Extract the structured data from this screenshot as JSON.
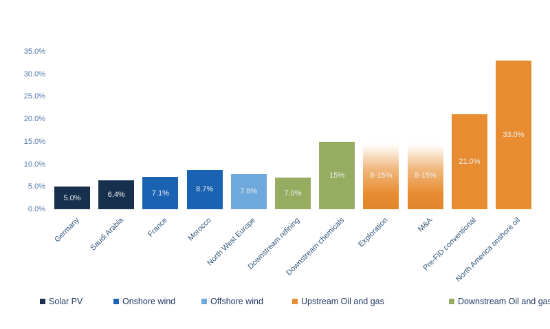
{
  "chart_data": {
    "type": "bar",
    "title": "",
    "xlabel": "",
    "ylabel": "",
    "grid": false,
    "y_axis": {
      "ylim": [
        0,
        35
      ],
      "tick_values": [
        0,
        5,
        10,
        15,
        20,
        25,
        30,
        35
      ],
      "tick_labels": [
        "0.0%",
        "5.0%",
        "10.0%",
        "15.0%",
        "20.0%",
        "25.0%",
        "30.0%",
        "35.0%"
      ]
    },
    "categories": [
      "Germany",
      "Saudi Arabia",
      "France",
      "Morocco",
      "North West Europe",
      "Downstream refining",
      "Downstream chemicals",
      "Exploration",
      "M&A",
      "Pre-FID conventional",
      "North America onshore oil"
    ],
    "bars": [
      {
        "category": "Germany",
        "value": 5.0,
        "label": "5.0%",
        "group": "Solar PV",
        "fill": "solid"
      },
      {
        "category": "Saudi Arabia",
        "value": 6.4,
        "label": "6.4%",
        "group": "Solar PV",
        "fill": "solid"
      },
      {
        "category": "France",
        "value": 7.1,
        "label": "7.1%",
        "group": "Onshore wind",
        "fill": "solid"
      },
      {
        "category": "Morocco",
        "value": 8.7,
        "label": "8.7%",
        "group": "Onshore wind",
        "fill": "solid"
      },
      {
        "category": "North West Europe",
        "value": 7.8,
        "label": "7.8%",
        "group": "Offshore wind",
        "fill": "solid"
      },
      {
        "category": "Downstream refining",
        "value": 7.0,
        "label": "7.0%",
        "group": "Downstream Oil and gas",
        "fill": "solid"
      },
      {
        "category": "Downstream chemicals",
        "value": 15,
        "label": "15%",
        "group": "Downstream Oil and gas",
        "fill": "solid"
      },
      {
        "category": "Exploration",
        "value": 15,
        "value_range": "8-15%",
        "label": "8-15%",
        "group": "Upstream Oil and gas",
        "fill": "gradient"
      },
      {
        "category": "M&A",
        "value": 15,
        "value_range": "8-15%",
        "label": "8-15%",
        "group": "Upstream Oil and gas",
        "fill": "gradient"
      },
      {
        "category": "Pre-FID conventional",
        "value": 21.0,
        "label": "21.0%",
        "group": "Upstream Oil and gas",
        "fill": "solid"
      },
      {
        "category": "North America onshore oil",
        "value": 33.0,
        "label": "33.0%",
        "group": "Upstream Oil and gas",
        "fill": "solid"
      }
    ],
    "colors": {
      "Solar PV": "#16304E",
      "Onshore wind": "#1A62B2",
      "Offshore wind": "#6FA8DC",
      "Upstream Oil and gas": "#E78C30",
      "Downstream Oil and gas": "#96AC60"
    },
    "gradient_fill": {
      "bottom": "#E0862C",
      "mid": "#F0B87E",
      "top": "#FEF8F2"
    },
    "text_colors": {
      "y_tick": "#4A74A8",
      "x_label": "#2E5579",
      "value_label": "#F0F0F0",
      "legend_text": "#1F3864"
    },
    "legend": {
      "position": "bottom",
      "items": [
        {
          "label": "Solar PV",
          "color": "#16304E"
        },
        {
          "label": "Onshore wind",
          "color": "#1A62B2"
        },
        {
          "label": "Offshore wind",
          "color": "#6FA8DC"
        },
        {
          "label": "Upstream Oil and gas",
          "color": "#E78C30"
        },
        {
          "label": "Downstream Oil and gas",
          "color": "#96AC60"
        }
      ]
    }
  }
}
